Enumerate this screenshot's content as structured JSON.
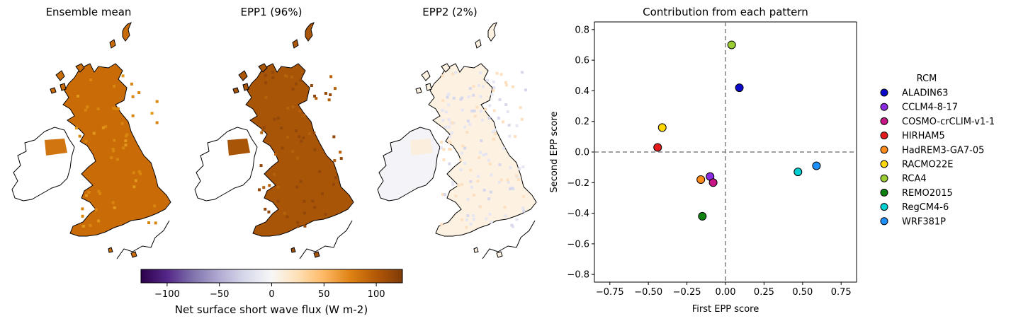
{
  "maps": {
    "panels": [
      {
        "title": "Ensemble mean",
        "style": "mean"
      },
      {
        "title": "EPP1 (96%)",
        "style": "epp1"
      },
      {
        "title": "EPP2 (2%)",
        "style": "epp2"
      }
    ],
    "colorbar": {
      "label": "Net surface short wave flux (W m-2)",
      "ticks": [
        "−100",
        "−50",
        "0",
        "50",
        "100"
      ],
      "tick_values": [
        -100,
        -50,
        0,
        50,
        100
      ],
      "range": [
        -125,
        125
      ],
      "colormap": "PuOr_r",
      "stops": [
        "#2d004b",
        "#542788",
        "#8073ac",
        "#b2abd2",
        "#d8daeb",
        "#f7f7f7",
        "#fee0b6",
        "#fdb863",
        "#e08214",
        "#b35806",
        "#7f3b08"
      ]
    }
  },
  "chart_data": {
    "type": "scatter",
    "title": "Contribution from each pattern",
    "xlabel": "First EPP score",
    "ylabel": "Second EPP score",
    "xlim": [
      -0.85,
      0.85
    ],
    "ylim": [
      -0.85,
      0.85
    ],
    "xticks": [
      -0.75,
      -0.5,
      -0.25,
      0,
      0.25,
      0.5,
      0.75
    ],
    "xtick_labels": [
      "−0.75",
      "−0.50",
      "−0.25",
      "0.00",
      "0.25",
      "0.50",
      "0.75"
    ],
    "yticks": [
      -0.8,
      -0.6,
      -0.4,
      -0.2,
      0,
      0.2,
      0.4,
      0.6,
      0.8
    ],
    "ytick_labels": [
      "−0.8",
      "−0.6",
      "−0.4",
      "−0.2",
      "0.0",
      "0.2",
      "0.4",
      "0.6",
      "0.8"
    ],
    "reference_lines": {
      "x": 0,
      "y": 0,
      "style": "dashed",
      "color": "#808080"
    },
    "grid": false,
    "legend": {
      "title": "RCM",
      "placement": "outside-right"
    },
    "series": [
      {
        "name": "ALADIN63",
        "x": 0.09,
        "y": 0.42,
        "color": "#0a0ac8"
      },
      {
        "name": "CCLM4-8-17",
        "x": -0.1,
        "y": -0.16,
        "color": "#8a2be2"
      },
      {
        "name": "COSMO-crCLIM-v1-1",
        "x": -0.08,
        "y": -0.2,
        "color": "#c71585"
      },
      {
        "name": "HIRHAM5",
        "x": -0.44,
        "y": 0.03,
        "color": "#e41a1c"
      },
      {
        "name": "HadREM3-GA7-05",
        "x": -0.16,
        "y": -0.18,
        "color": "#ff8c1a"
      },
      {
        "name": "RACMO22E",
        "x": -0.41,
        "y": 0.16,
        "color": "#ffd700"
      },
      {
        "name": "RCA4",
        "x": 0.04,
        "y": 0.7,
        "color": "#9acd32"
      },
      {
        "name": "REMO2015",
        "x": -0.15,
        "y": -0.42,
        "color": "#108010"
      },
      {
        "name": "RegCM4-6",
        "x": 0.47,
        "y": -0.13,
        "color": "#00ced1"
      },
      {
        "name": "WRF381P",
        "x": 0.59,
        "y": -0.09,
        "color": "#1e90ff"
      }
    ]
  }
}
